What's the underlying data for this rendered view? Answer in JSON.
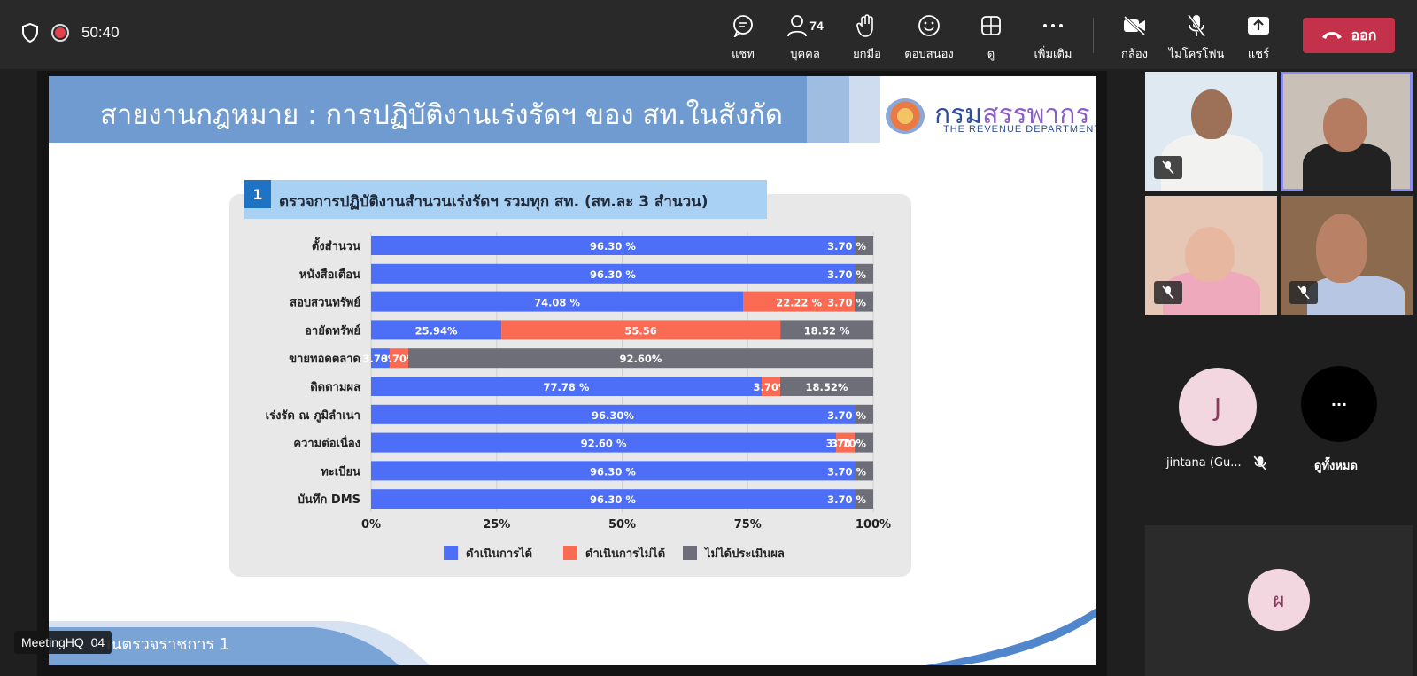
{
  "topbar": {
    "timer": "50:40",
    "buttons": {
      "chat": "แชท",
      "people": "บุคคล",
      "people_count": "74",
      "raise_hand": "ยกมือ",
      "react": "ตอบสนอง",
      "view": "ดู",
      "more": "เพิ่มเติม",
      "camera": "กล้อง",
      "mic": "ไมโครโฟน",
      "share": "แชร์"
    },
    "leave_label": "ออก",
    "leave_color": "#c4314b"
  },
  "slide": {
    "title": "สายงานกฎหมาย : การปฏิบัติงานเร่งรัดฯ ของ สท.ในสังกัด",
    "logo_text_a": "กรม",
    "logo_text_b": "สรรพากร",
    "logo_sub": "THE REVENUE DEPARTMENT",
    "chart_number": "1",
    "chart_heading": "ตรวจการปฏิบัติงานสำนวนเร่งรัดฯ รวมทุก สท. (สท.ละ 3 สำนวน)",
    "footer_text": "านตรวจราชการ 1"
  },
  "chart_data": {
    "type": "bar",
    "orientation": "horizontal-stacked",
    "categories": [
      "ตั้งสำนวน",
      "หนังสือเตือน",
      "สอบสวนทรัพย์",
      "อายัดทรัพย์",
      "ขายทอดตลาด",
      "ติดตามผล",
      "เร่งรัด ณ ภูมิลำเนา",
      "ความต่อเนื่อง",
      "ทะเบียน",
      "บันทึก DMS"
    ],
    "series": [
      {
        "name": "ดำเนินการได้",
        "color": "#4d6ef7",
        "values": [
          96.3,
          96.3,
          74.08,
          25.94,
          3.7,
          77.78,
          96.3,
          92.6,
          96.3,
          96.3
        ],
        "labels": [
          "96.30 %",
          "96.30 %",
          "74.08 %",
          "25.94%",
          "3.70%",
          "77.78 %",
          "96.30%",
          "92.60 %",
          "96.30 %",
          "96.30 %"
        ]
      },
      {
        "name": "ดำเนินการไม่ได้",
        "color": "#fb6a53",
        "values": [
          0,
          0,
          22.22,
          55.56,
          3.7,
          3.7,
          0,
          3.7,
          0,
          0
        ],
        "labels": [
          "",
          "",
          "22.22 %",
          "55.56",
          "3.70%",
          "3.70%",
          "",
          "3.70 %",
          "",
          ""
        ]
      },
      {
        "name": "ไม่ได้ประเมินผล",
        "color": "#6e6e78",
        "values": [
          3.7,
          3.7,
          3.7,
          18.52,
          92.6,
          18.52,
          3.7,
          3.7,
          3.7,
          3.7
        ],
        "labels": [
          "3.70 %",
          "3.70 %",
          "3.70 %",
          "18.52 %",
          "92.60%",
          "18.52%",
          "3.70 %",
          "3.70%",
          "3.70 %",
          "3.70 %"
        ]
      }
    ],
    "x_ticks": [
      "0%",
      "25%",
      "50%",
      "75%",
      "100%"
    ],
    "xlim": [
      0,
      100
    ],
    "grid": true,
    "legend": "bottom"
  },
  "participants": {
    "p5_name": "jintana (Gu...",
    "p5_initial": "J",
    "view_all": "ดูทั้งหมด",
    "view_all_icon": "···",
    "p6_initial": "ผ"
  },
  "meeting_label": "MeetingHQ_04"
}
